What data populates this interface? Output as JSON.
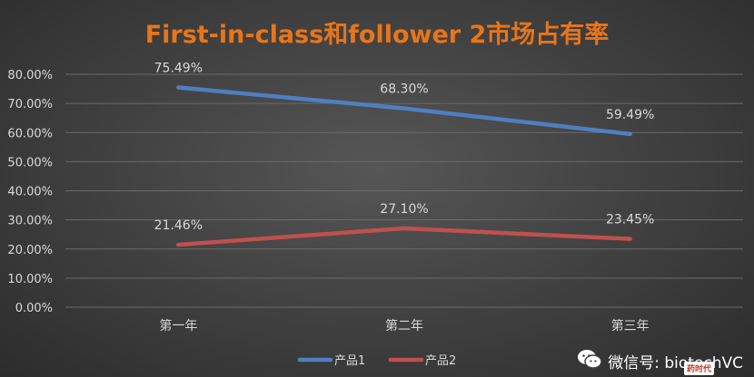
{
  "chart_data": {
    "type": "line",
    "title": "First-in-class和follower 2市场占有率",
    "categories": [
      "第一年",
      "第二年",
      "第三年"
    ],
    "series": [
      {
        "name": "产品1",
        "values": [
          75.49,
          68.3,
          59.49
        ],
        "labels": [
          "75.49%",
          "68.30%",
          "59.49%"
        ],
        "color": "#4f7fc2"
      },
      {
        "name": "产品2",
        "values": [
          21.46,
          27.1,
          23.45
        ],
        "labels": [
          "21.46%",
          "27.10%",
          "23.45%"
        ],
        "color": "#c0504d"
      }
    ],
    "ylim": [
      0,
      80
    ],
    "y_ticks": [
      "0.00%",
      "10.00%",
      "20.00%",
      "30.00%",
      "40.00%",
      "50.00%",
      "60.00%",
      "70.00%",
      "80.00%"
    ],
    "xlabel": "",
    "ylabel": "",
    "grid": true,
    "legend": "bottom",
    "title_color": "#e8751a"
  },
  "watermark": {
    "text": "微信号: biotechVC",
    "logo_text": "药时代",
    "icon": "wechat-icon"
  }
}
